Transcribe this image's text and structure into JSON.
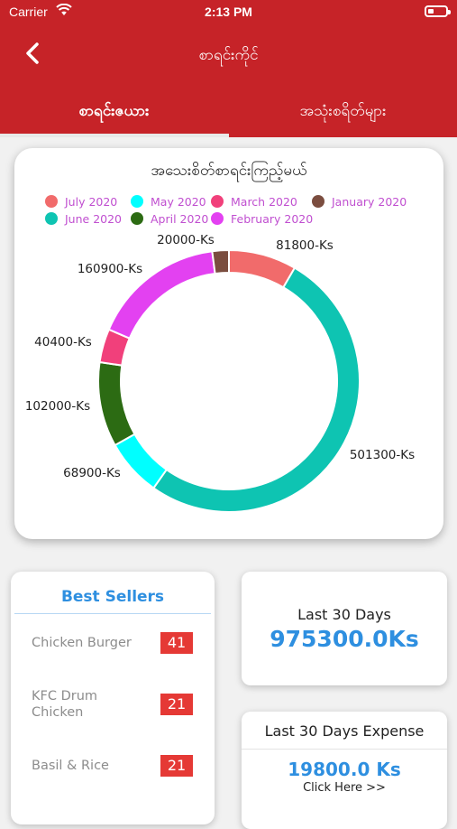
{
  "status_bar": {
    "carrier": "Carrier",
    "time": "2:13 PM"
  },
  "header": {
    "back_icon": "chevron-left-icon",
    "title": "စာရင်းကိုင်",
    "tabs": [
      {
        "label": "စာရင်းဇယား",
        "active": true
      },
      {
        "label": "အသုံးစရိတ်များ",
        "active": false
      }
    ]
  },
  "colors": {
    "header_bg": "#c62328",
    "accent_blue": "#2e8fe0",
    "badge_red": "#e53935"
  },
  "chart_data": {
    "type": "pie",
    "title": "အသေးစိတ်စာရင်းကြည့်မယ်",
    "donut": true,
    "legend": [
      {
        "name": "July 2020",
        "color": "#f16b6b"
      },
      {
        "name": "May 2020",
        "color": "#00ffff"
      },
      {
        "name": "March 2020",
        "color": "#f1407b"
      },
      {
        "name": "January 2020",
        "color": "#7b4d3f"
      },
      {
        "name": "June 2020",
        "color": "#0ec4b2"
      },
      {
        "name": "April 2020",
        "color": "#2c6b13"
      },
      {
        "name": "February 2020",
        "color": "#e341f1"
      }
    ],
    "slices": [
      {
        "name": "July 2020",
        "value": 81800,
        "label": "81800-Ks",
        "color": "#f16b6b"
      },
      {
        "name": "June 2020",
        "value": 501300,
        "label": "501300-Ks",
        "color": "#0ec4b2"
      },
      {
        "name": "May 2020",
        "value": 68900,
        "label": "68900-Ks",
        "color": "#00ffff"
      },
      {
        "name": "April 2020",
        "value": 102000,
        "label": "102000-Ks",
        "color": "#2c6b13"
      },
      {
        "name": "March 2020",
        "value": 40400,
        "label": "40400-Ks",
        "color": "#f1407b"
      },
      {
        "name": "February 2020",
        "value": 160900,
        "label": "160900-Ks",
        "color": "#e341f1"
      },
      {
        "name": "January 2020",
        "value": 20000,
        "label": "20000-Ks",
        "color": "#7b4d3f"
      }
    ]
  },
  "best_sellers": {
    "title": "Best Sellers",
    "items": [
      {
        "name": "Chicken Burger",
        "count": "41"
      },
      {
        "name": "KFC Drum Chicken",
        "count": "21"
      },
      {
        "name": "Basil & Rice",
        "count": "21"
      }
    ]
  },
  "last_30_days": {
    "label": "Last 30 Days",
    "value": "975300.0Ks"
  },
  "expense": {
    "label": "Last 30 Days Expense",
    "value": "19800.0 Ks",
    "link": "Click Here >>"
  }
}
